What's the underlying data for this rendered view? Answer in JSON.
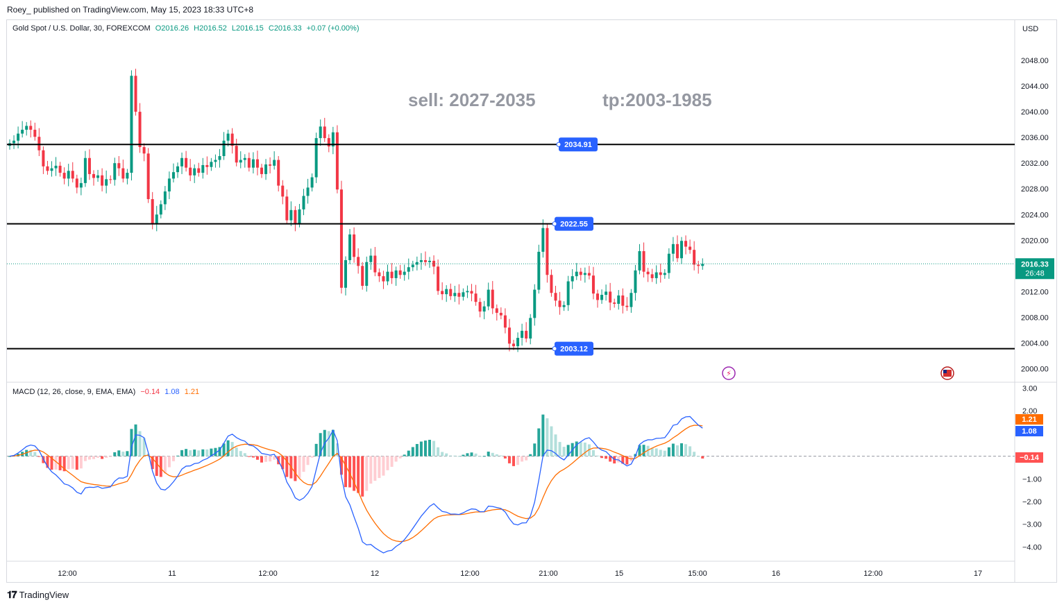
{
  "publisher_line": "Roey_ published on TradingView.com, May 15, 2023 18:33 UTC+8",
  "symbol_legend": {
    "name": "Gold Spot / U.S. Dollar, 30, FOREXCOM",
    "open": "O2016.26",
    "high": "H2016.52",
    "low": "L2016.15",
    "close": "C2016.33",
    "change": "+0.07 (+0.00%)"
  },
  "currency": "USD",
  "annotation_sell": "sell: 2027-2035",
  "annotation_tp": "tp:2003-1985",
  "levels": [
    {
      "label": "2034.91",
      "price": 2034.91
    },
    {
      "label": "2022.55",
      "price": 2022.55
    },
    {
      "label": "2003.12",
      "price": 2003.12
    }
  ],
  "last_price": {
    "label": "2016.33",
    "countdown": "26:48",
    "price": 2016.33
  },
  "macd_legend": {
    "name": "MACD (12, 26, close, 9, EMA, EMA)",
    "hist": "−0.14",
    "macd": "1.08",
    "signal": "1.21"
  },
  "macd_badges": {
    "signal": "1.21",
    "macd": "1.08",
    "hist": "−0.14"
  },
  "brand": "TradingView",
  "colors": {
    "up": "#089981",
    "down": "#f23645",
    "macd": "#2962ff",
    "signal": "#ff6d00",
    "hist_up": "#26a69a",
    "hist_up_light": "#b2dfdb",
    "hist_dn": "#ff5252",
    "hist_dn_light": "#ffcdd2"
  },
  "chart_data": [
    {
      "type": "candlestick",
      "title": "Gold Spot / U.S. Dollar, 30, FOREXCOM",
      "ylabel": "USD",
      "ylim": [
        1998,
        2052
      ],
      "y_ticks": [
        "2000.00",
        "2004.00",
        "2008.00",
        "2012.00",
        "2016.00",
        "2020.00",
        "2024.00",
        "2028.00",
        "2032.00",
        "2036.00",
        "2040.00",
        "2044.00",
        "2048.00"
      ],
      "x_ticks": [
        "12:00",
        "11",
        "12:00",
        "12",
        "12:00",
        "21:00",
        "15",
        "15:00",
        "16",
        "12:00",
        "17"
      ],
      "close": [
        2035.1,
        2035.5,
        2036.6,
        2037.2,
        2037.8,
        2037.2,
        2036.1,
        2034,
        2031.5,
        2030.8,
        2031.2,
        2031.6,
        2030.5,
        2029.6,
        2030.8,
        2029.6,
        2028.2,
        2028.9,
        2032.8,
        2030.3,
        2029.7,
        2030.1,
        2028.5,
        2029.5,
        2029.4,
        2032,
        2031.2,
        2029.6,
        2030.5,
        2045.6,
        2040,
        2034.5,
        2033.5,
        2026.4,
        2022.6,
        2024,
        2025.6,
        2027.6,
        2029.6,
        2030.6,
        2031.5,
        2032.8,
        2031.3,
        2030.1,
        2031.2,
        2030.5,
        2031.7,
        2031.4,
        2032.2,
        2032.5,
        2033.1,
        2035.5,
        2036.6,
        2034.7,
        2032.1,
        2032.5,
        2032.8,
        2031.3,
        2032.6,
        2031.3,
        2030.3,
        2031.8,
        2031.6,
        2032.5,
        2028.5,
        2026.8,
        2023.1,
        2024.7,
        2022.6,
        2024.8,
        2026.9,
        2028.2,
        2029.8,
        2035.9,
        2037.7,
        2035.9,
        2034.6,
        2036.8,
        2027.9,
        2012.6,
        2016.9,
        2020.9,
        2017.4,
        2016,
        2012.9,
        2016.6,
        2017.6,
        2015,
        2014.4,
        2013.6,
        2015.1,
        2014.1,
        2015.3,
        2014.6,
        2015.1,
        2015.8,
        2016.2,
        2016.6,
        2016.9,
        2016.6,
        2016.8,
        2015.9,
        2012.1,
        2011.6,
        2012.4,
        2011.3,
        2011.8,
        2011.2,
        2011.9,
        2012.1,
        2011.7,
        2010.4,
        2008.9,
        2009.7,
        2012.3,
        2009.4,
        2008.7,
        2008.3,
        2006.4,
        2003.9,
        2003.5,
        2004.8,
        2005.9,
        2004.7,
        2007.9,
        2012.3,
        2018.2,
        2021.9,
        2014.6,
        2011.8,
        2010.6,
        2009.6,
        2009.9,
        2013.6,
        2014.4,
        2015.1,
        2014.6,
        2014.9,
        2014.5,
        2011.7,
        2010.7,
        2011.5,
        2012,
        2010.3,
        2010.1,
        2011.4,
        2009.8,
        2009.6,
        2011.8,
        2015.3,
        2018.3,
        2015.1,
        2014.7,
        2014.1,
        2015,
        2014.6,
        2014.9,
        2017.9,
        2019.4,
        2017.2,
        2019.9,
        2019,
        2018.5,
        2016.2,
        2016,
        2016.33
      ],
      "series": [
        {
          "name": "MACD",
          "value": 1.08
        },
        {
          "name": "Signal",
          "value": 1.21
        },
        {
          "name": "Histogram",
          "value": -0.14
        }
      ],
      "macd_ylim": [
        -4.6,
        3.2
      ],
      "macd_y_ticks": [
        "3.00",
        "2.00",
        "−1.00",
        "−2.00",
        "−3.00",
        "−4.00"
      ]
    }
  ]
}
